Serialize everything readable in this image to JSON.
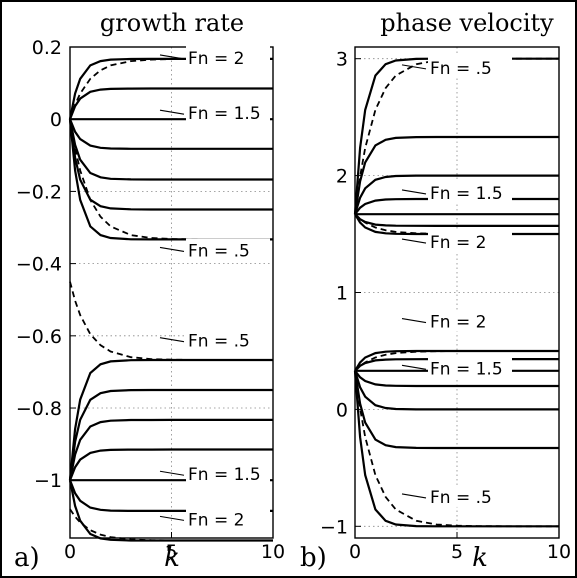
{
  "chart_data": [
    {
      "type": "line",
      "panel_label": "a)",
      "title": "growth rate",
      "xlabel": "k",
      "ylabel": "",
      "xlim": [
        0,
        10
      ],
      "ylim": [
        -1.16,
        0.2
      ],
      "xticks": [
        "0",
        "5",
        "10"
      ],
      "yticks": [
        "0.2",
        "0",
        "−0.2",
        "−0.4",
        "−0.6",
        "−0.8",
        "−1"
      ],
      "grid": true,
      "x": [
        0,
        0.25,
        0.5,
        1,
        1.5,
        2,
        3,
        4,
        5,
        6,
        7,
        8,
        9,
        10
      ],
      "series": [
        {
          "style": "solid",
          "start": 0,
          "end": 0.167
        },
        {
          "style": "solid",
          "start": 0,
          "end": 0.085
        },
        {
          "style": "solid",
          "start": 0,
          "end": 0
        },
        {
          "style": "solid",
          "start": 0,
          "end": -0.082
        },
        {
          "style": "solid",
          "start": 0,
          "end": -0.167
        },
        {
          "style": "solid",
          "start": 0,
          "end": -0.25
        },
        {
          "style": "solid",
          "start": 0,
          "end": -0.333
        },
        {
          "style": "solid",
          "start": -1,
          "end": -0.667
        },
        {
          "style": "solid",
          "start": -1,
          "end": -0.75
        },
        {
          "style": "solid",
          "start": -1,
          "end": -0.833
        },
        {
          "style": "solid",
          "start": -1,
          "end": -0.915
        },
        {
          "style": "solid",
          "start": -1,
          "end": -1
        },
        {
          "style": "solid",
          "start": -1,
          "end": -1.085
        },
        {
          "style": "solid",
          "start": -1,
          "end": -1.167
        },
        {
          "style": "dashed",
          "start": 0,
          "end": 0.167
        },
        {
          "style": "dashed",
          "start": 0,
          "end": -0.333
        },
        {
          "style": "dashed",
          "start": -0.45,
          "end": -0.667
        },
        {
          "style": "dashed",
          "start": -1.08,
          "end": -1.167
        }
      ],
      "annotations": [
        {
          "text": "Fn = 2",
          "x": 5.5,
          "y": 0.153
        },
        {
          "text": "Fn = 1.5",
          "x": 5.5,
          "y": 0
        },
        {
          "text": "Fn = .5",
          "x": 5.5,
          "y": -0.38
        },
        {
          "text": "Fn = .5",
          "x": 5.5,
          "y": -0.63
        },
        {
          "text": "Fn = 1.5",
          "x": 5.5,
          "y": -1.0
        },
        {
          "text": "Fn = 2",
          "x": 5.5,
          "y": -1.125
        }
      ]
    },
    {
      "type": "line",
      "panel_label": "b)",
      "title": "phase velocity",
      "xlabel": "k",
      "ylabel": "",
      "xlim": [
        0,
        10
      ],
      "ylim": [
        -1.1,
        3.1
      ],
      "xticks": [
        "0",
        "5",
        "10"
      ],
      "yticks": [
        "3",
        "2",
        "1",
        "0",
        "−1"
      ],
      "grid": true,
      "x": [
        0,
        0.25,
        0.5,
        1,
        1.5,
        2,
        3,
        4,
        5,
        6,
        7,
        8,
        9,
        10
      ],
      "series": [
        {
          "style": "solid",
          "start": 1.67,
          "end": 3.0
        },
        {
          "style": "solid",
          "start": 1.67,
          "end": 2.33
        },
        {
          "style": "solid",
          "start": 1.67,
          "end": 2.0
        },
        {
          "style": "solid",
          "start": 1.67,
          "end": 1.8
        },
        {
          "style": "solid",
          "start": 1.67,
          "end": 1.67
        },
        {
          "style": "solid",
          "start": 1.67,
          "end": 1.57
        },
        {
          "style": "solid",
          "start": 1.67,
          "end": 1.5
        },
        {
          "style": "solid",
          "start": 0.33,
          "end": 0.5
        },
        {
          "style": "solid",
          "start": 0.33,
          "end": 0.43
        },
        {
          "style": "solid",
          "start": 0.33,
          "end": 0.33
        },
        {
          "style": "solid",
          "start": 0.33,
          "end": 0.2
        },
        {
          "style": "solid",
          "start": 0.33,
          "end": 0
        },
        {
          "style": "solid",
          "start": 0.33,
          "end": -0.33
        },
        {
          "style": "solid",
          "start": 0.33,
          "end": -1.0
        },
        {
          "style": "dashed",
          "start": 1.67,
          "end": 3.0
        },
        {
          "style": "dashed",
          "start": 1.67,
          "end": 1.5
        },
        {
          "style": "dashed",
          "start": 0.33,
          "end": 0.5
        },
        {
          "style": "dashed",
          "start": 0.33,
          "end": -1.0
        }
      ],
      "annotations": [
        {
          "text": "Fn = .5",
          "x": 5.5,
          "y": 2.87
        },
        {
          "text": "Fn = 1.5",
          "x": 5.5,
          "y": 1.8
        },
        {
          "text": "Fn = 2",
          "x": 5.5,
          "y": 1.38
        },
        {
          "text": "Fn = 2",
          "x": 5.5,
          "y": 0.7
        },
        {
          "text": "Fn = 1.5",
          "x": 5.5,
          "y": 0.3
        },
        {
          "text": "Fn = .5",
          "x": 5.5,
          "y": -0.8
        }
      ]
    }
  ]
}
